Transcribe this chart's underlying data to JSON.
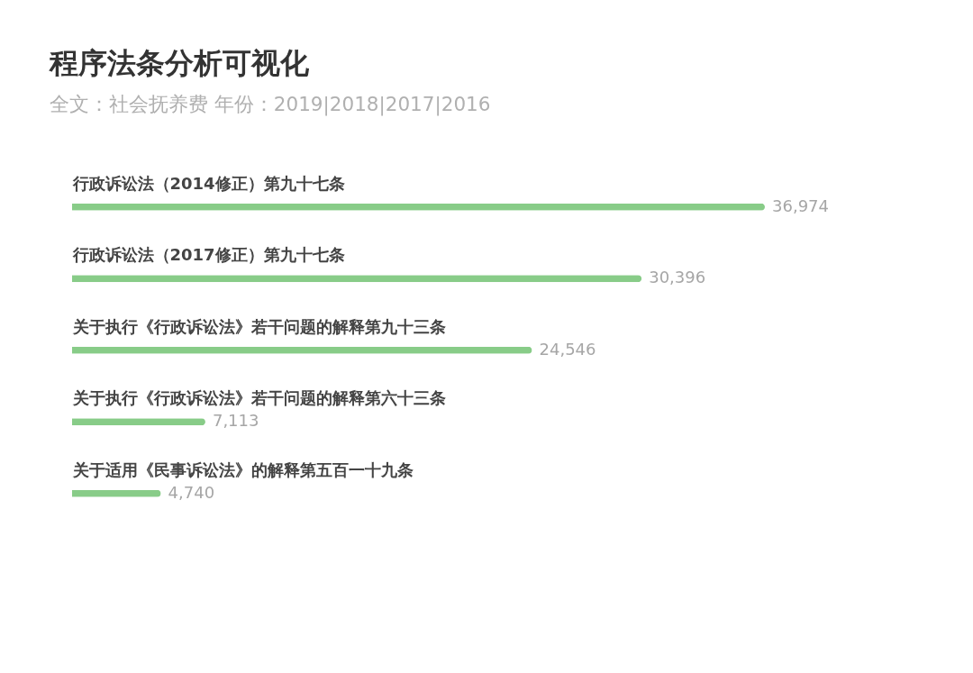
{
  "chart_data": {
    "type": "bar",
    "orientation": "horizontal",
    "title": "程序法条分析可视化",
    "subtitle": "全文：社会抚养费  年份：2019|2018|2017|2016",
    "categories": [
      "行政诉讼法（2014修正）第九十七条",
      "行政诉讼法（2017修正）第九十七条",
      "关于执行《行政诉讼法》若干问题的解释第九十三条",
      "关于执行《行政诉讼法》若干问题的解释第六十三条",
      "关于适用《民事诉讼法》的解释第五百一十九条"
    ],
    "values": [
      36974,
      30396,
      24546,
      7113,
      4740
    ],
    "value_labels": [
      "36,974",
      "30,396",
      "24,546",
      "7,113",
      "4,740"
    ],
    "color": "#88cc88",
    "tick_labels": "y"
  }
}
